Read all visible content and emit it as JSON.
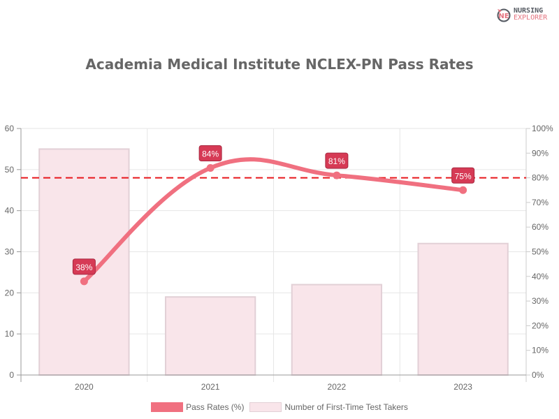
{
  "logo": {
    "line1": "NURSING",
    "line2": "EXPLORER",
    "icon": "nursing-explorer-logo-icon"
  },
  "title": "Academia Medical Institute NCLEX-PN Pass Rates",
  "legend": [
    {
      "label": "Pass Rates (%)",
      "color": "#f07080"
    },
    {
      "label": "Number of First-Time Test Takers",
      "color": "#f9e5ea"
    }
  ],
  "colors": {
    "line": "#f07080",
    "bar_fill": "#f9e5ea",
    "bar_border": "#e2d0d6",
    "label_bg": "#d63a55",
    "benchmark": "#e8161b",
    "grid": "#e6e6e6",
    "axis_text": "#666666"
  },
  "chart_data": {
    "type": "bar",
    "title": "Academia Medical Institute NCLEX-PN Pass Rates",
    "categories": [
      "2020",
      "2021",
      "2022",
      "2023"
    ],
    "series": [
      {
        "name": "Number of First-Time Test Takers",
        "type": "bar",
        "axis": "left",
        "values": [
          55,
          19,
          22,
          32
        ]
      },
      {
        "name": "Pass Rates (%)",
        "type": "line",
        "axis": "right",
        "values": [
          38,
          84,
          81,
          75
        ],
        "data_labels": [
          "38%",
          "84%",
          "81%",
          "75%"
        ]
      }
    ],
    "benchmark": {
      "value": 80,
      "axis": "right",
      "style": "dashed",
      "color": "#e8161b"
    },
    "y_left": {
      "min": 0,
      "max": 60,
      "ticks": [
        "0",
        "10",
        "20",
        "30",
        "40",
        "50",
        "60"
      ]
    },
    "y_right": {
      "min": 0,
      "max": 100,
      "ticks": [
        "0%",
        "10%",
        "20%",
        "30%",
        "40%",
        "50%",
        "60%",
        "70%",
        "80%",
        "90%",
        "100%"
      ]
    },
    "xlabel": "",
    "ylabel": "",
    "grid": true,
    "legend_position": "bottom"
  }
}
